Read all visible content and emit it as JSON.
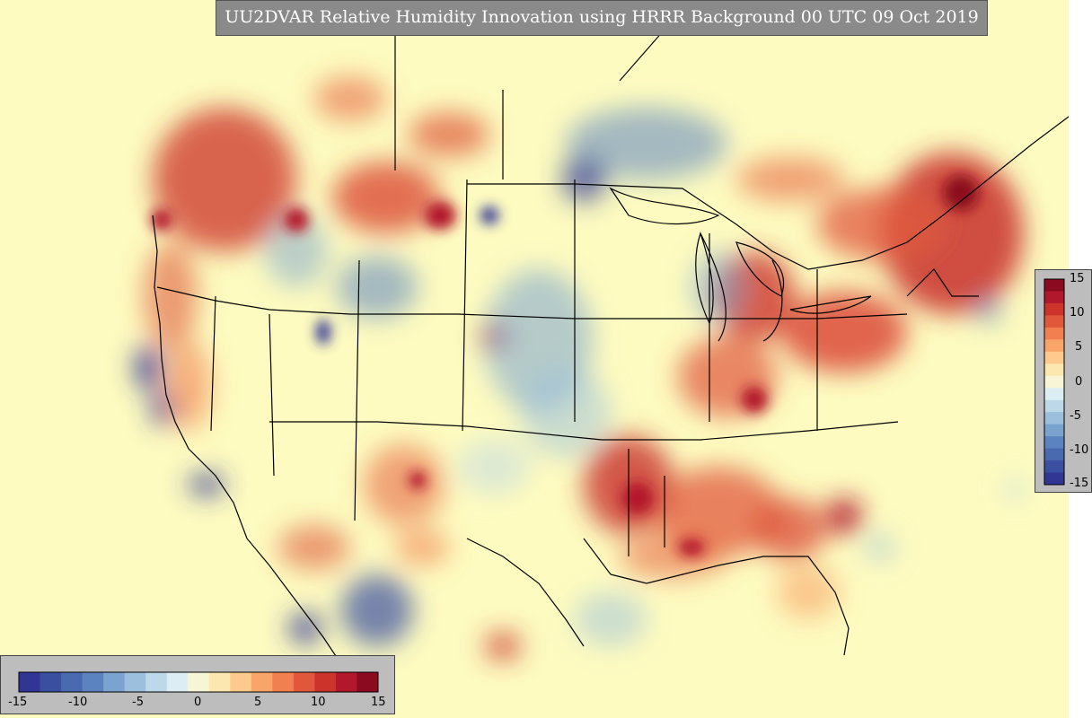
{
  "title": "UU2DVAR Relative Humidity Innovation using HRRR Background 00 UTC 09 Oct 2019",
  "colorbar": {
    "vertical_ticks": [
      "15",
      "10",
      "5",
      "0",
      "-5",
      "-10",
      "-15"
    ],
    "horizontal_ticks": [
      "-15",
      "-10",
      "-5",
      "0",
      "5",
      "10",
      "15"
    ],
    "range": [
      -15,
      15
    ],
    "colors": [
      "#313695",
      "#3a4fa0",
      "#4a6ab0",
      "#5b83c0",
      "#7aa3cf",
      "#9bbfdd",
      "#bdd8e8",
      "#dceef3",
      "#f6f5d6",
      "#fde7b0",
      "#fdc98c",
      "#f9a56a",
      "#f27f4f",
      "#e1573b",
      "#cc332a",
      "#b2182b",
      "#8b0a1f"
    ]
  }
}
